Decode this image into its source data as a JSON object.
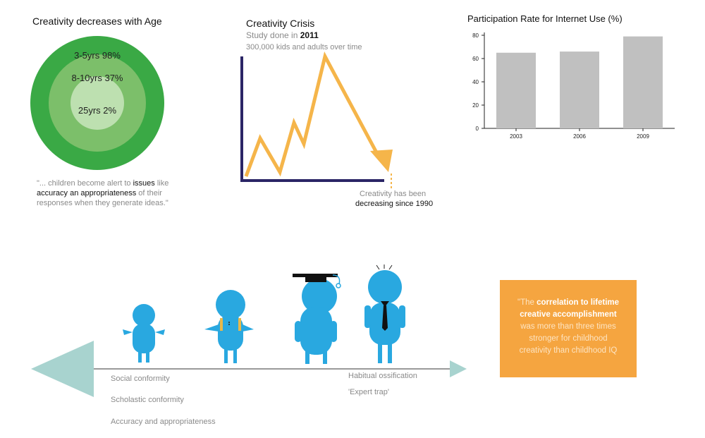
{
  "panel1": {
    "title": "Creativity decreases with Age",
    "rings": [
      {
        "label": "3-5yrs 98%"
      },
      {
        "label": "8-10yrs 37%"
      },
      {
        "label": "25yrs 2%"
      }
    ],
    "quote": {
      "p1": "\"... children become alert to ",
      "p2": "issues",
      "p3": " like",
      "p4": "accuracy an appropriateness",
      "p5": " of their",
      "p6": "responses when they generate ideas.\""
    }
  },
  "panel2": {
    "title": "Creativity Crisis",
    "study_prefix": "Study done in ",
    "study_year": "2011",
    "subtitle": "300,000 kids and adults over time",
    "note_line1": "Creativity has been",
    "note_line2": "decreasing since 1990"
  },
  "chart_data": {
    "type": "bar",
    "title": "Participation Rate for Internet Use (%)",
    "categories": [
      "2003",
      "2006",
      "2009"
    ],
    "values": [
      65,
      66,
      79
    ],
    "yticks": [
      0,
      20,
      40,
      60,
      80
    ],
    "ylim": [
      0,
      80
    ],
    "xlabel": "",
    "ylabel": "",
    "grid": false,
    "bar_color": "#c0c0c0"
  },
  "timeline": {
    "left_labels": [
      "Social conformity",
      "Scholastic conformity",
      "Accuracy and appropriateness"
    ],
    "right_labels": [
      "Habitual ossification",
      "'Expert trap'"
    ],
    "arrow_color": "#a8d3cf",
    "figure_color": "#29a8e0"
  },
  "quote_box": {
    "pre": "\"The ",
    "highlight1": "correlation to lifetime",
    "highlight2": "creative accomplishment",
    "line3": "was more than three times",
    "line4": "stronger for childhood",
    "line5": "creativity than childhood IQ",
    "color": "#f5a540"
  }
}
